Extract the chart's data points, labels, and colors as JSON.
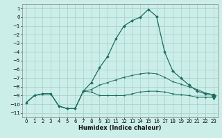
{
  "xlabel": "Humidex (Indice chaleur)",
  "bg_color": "#cceee8",
  "grid_color": "#aad4cc",
  "line_color": "#1a6b60",
  "xlim": [
    -0.5,
    23.5
  ],
  "ylim": [
    -11.5,
    1.5
  ],
  "yticks": [
    1,
    0,
    -1,
    -2,
    -3,
    -4,
    -5,
    -6,
    -7,
    -8,
    -9,
    -10,
    -11
  ],
  "xticks": [
    0,
    1,
    2,
    3,
    4,
    5,
    6,
    7,
    8,
    9,
    10,
    11,
    12,
    13,
    14,
    15,
    16,
    17,
    18,
    19,
    20,
    21,
    22,
    23
  ],
  "series_max": [
    -9.8,
    -9.0,
    -8.8,
    -8.8,
    -10.2,
    -10.5,
    -10.5,
    -8.5,
    -7.5,
    -5.8,
    -4.5,
    -2.5,
    -1.0,
    -0.4,
    0.0,
    0.9,
    0.1,
    -4.0,
    -6.2,
    -7.0,
    -7.8,
    -8.5,
    -8.8,
    -8.9
  ],
  "series_mean": [
    -9.8,
    -9.0,
    -8.8,
    -8.8,
    -10.2,
    -10.5,
    -10.5,
    -8.5,
    -8.3,
    -7.8,
    -7.5,
    -7.2,
    -6.9,
    -6.7,
    -6.5,
    -6.4,
    -6.5,
    -6.9,
    -7.4,
    -7.7,
    -8.0,
    -8.3,
    -8.7,
    -8.9
  ],
  "series_min": [
    -9.8,
    -9.0,
    -8.8,
    -8.8,
    -10.2,
    -10.5,
    -10.5,
    -8.5,
    -8.6,
    -9.0,
    -9.0,
    -9.0,
    -9.0,
    -8.8,
    -8.6,
    -8.5,
    -8.5,
    -8.6,
    -8.8,
    -8.9,
    -9.0,
    -9.2,
    -9.2,
    -9.2
  ],
  "x": [
    0,
    1,
    2,
    3,
    4,
    5,
    6,
    7,
    8,
    9,
    10,
    11,
    12,
    13,
    14,
    15,
    16,
    17,
    18,
    19,
    20,
    21,
    22,
    23
  ]
}
